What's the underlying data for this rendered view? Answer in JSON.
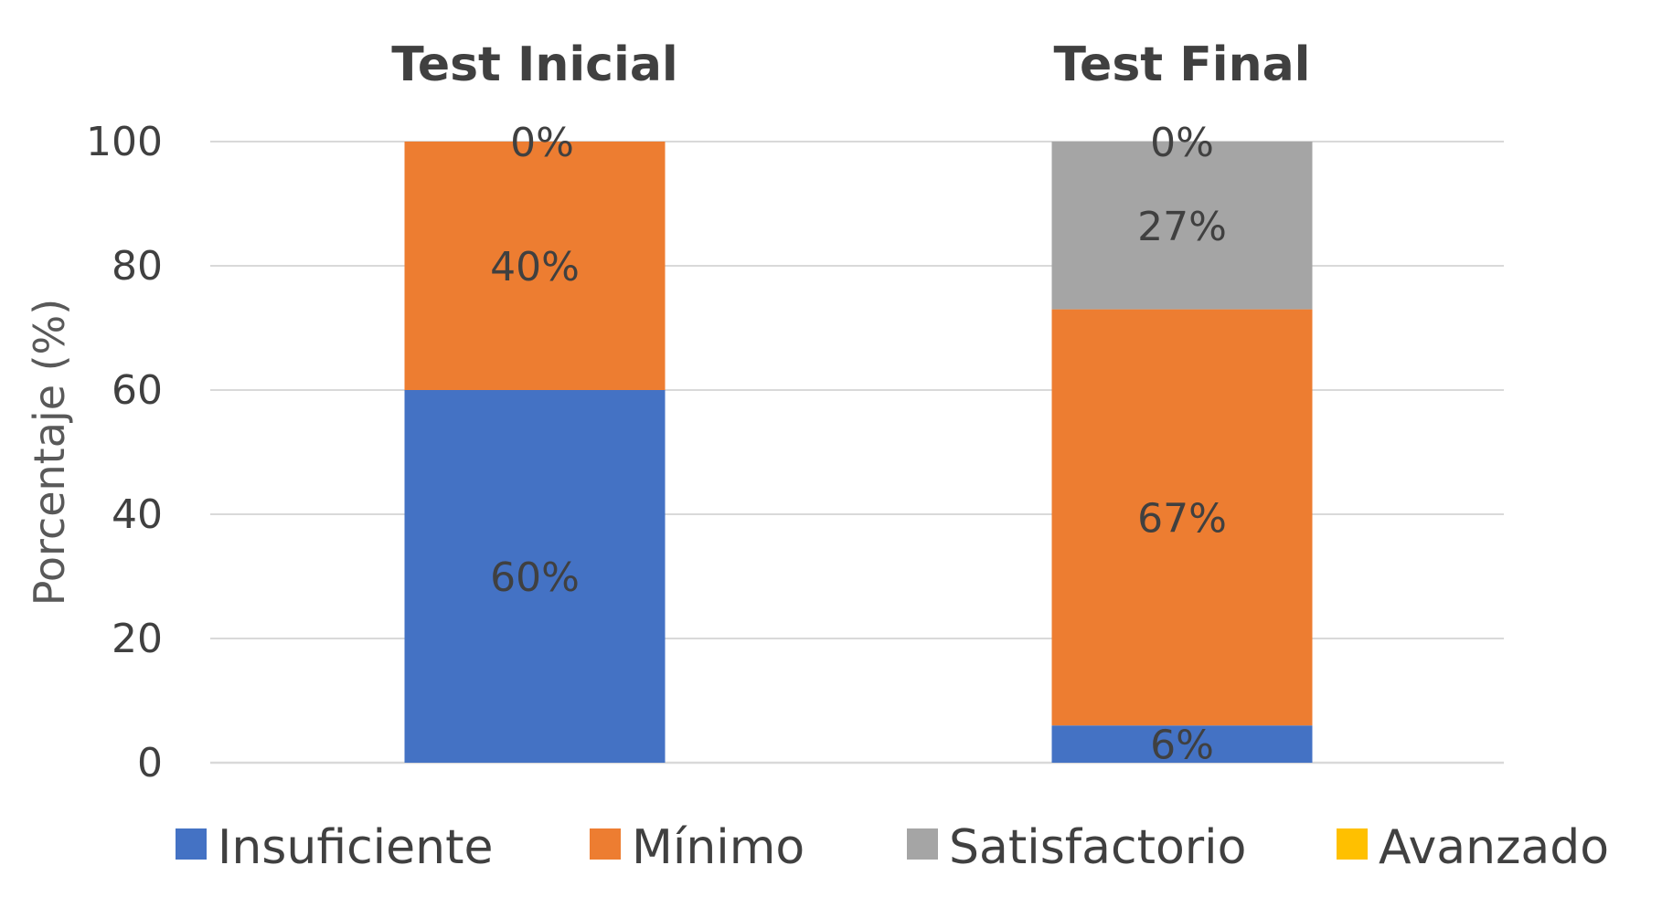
{
  "chart_data": {
    "type": "bar",
    "stacked": true,
    "categories": [
      "Test Inicial",
      "Test Final"
    ],
    "series": [
      {
        "name": "Insuficiente",
        "color": "#4472c4",
        "values": [
          60,
          6
        ],
        "labels": [
          "60%",
          "6%"
        ]
      },
      {
        "name": "Mínimo",
        "color": "#ed7d31",
        "values": [
          40,
          67
        ],
        "labels": [
          "40%",
          "67%"
        ]
      },
      {
        "name": "Satisfactorio",
        "color": "#a5a5a5",
        "values": [
          0,
          27
        ],
        "labels": [
          "",
          "27%"
        ]
      },
      {
        "name": "Avanzado",
        "color": "#ffc000",
        "values": [
          0,
          0
        ],
        "labels": [
          "0%",
          "0%"
        ]
      }
    ],
    "ylabel": "Porcentaje (%)",
    "xlabel": "",
    "ylim": [
      0,
      100
    ],
    "yticks": [
      0,
      20,
      40,
      60,
      80,
      100
    ],
    "grid": true,
    "legend": "bottom"
  }
}
